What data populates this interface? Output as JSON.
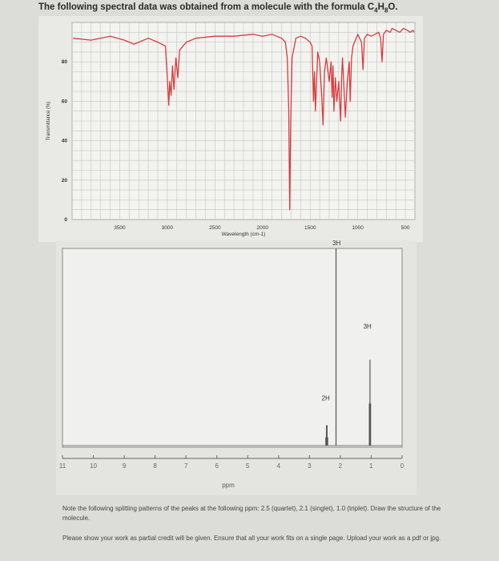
{
  "header": {
    "title_prefix": "The following spectral data was obtained from a molecule with the formula C",
    "c_sub": "4",
    "h": "H",
    "h_sub": "8",
    "o": "O."
  },
  "chart_data": [
    {
      "type": "line",
      "name": "IR spectrum",
      "xlabel": "Wavelength (cm-1)",
      "ylabel": "Transmittance (%)",
      "x_reversed": true,
      "xlim": [
        4000,
        400
      ],
      "ylim": [
        0,
        100
      ],
      "x_ticks": [
        3500,
        3000,
        2500,
        2000,
        1500,
        1000,
        500
      ],
      "y_ticks": [
        0,
        20,
        40,
        60,
        80
      ],
      "grid": true,
      "color": "#d93b3b",
      "series": [
        {
          "x": [
            3990,
            3800,
            3600,
            3450,
            3350,
            3200,
            3100,
            3020,
            3000,
            2985,
            2975,
            2960,
            2945,
            2930,
            2910,
            2890,
            2870,
            2800,
            2700,
            2500,
            2300,
            2100,
            2000,
            1900,
            1800,
            1760,
            1740,
            1725,
            1715,
            1705,
            1690,
            1650,
            1600,
            1550,
            1500,
            1480,
            1465,
            1455,
            1445,
            1420,
            1400,
            1380,
            1365,
            1350,
            1330,
            1300,
            1280,
            1270,
            1260,
            1250,
            1235,
            1220,
            1200,
            1180,
            1170,
            1160,
            1150,
            1130,
            1110,
            1090,
            1080,
            1065,
            1050,
            1000,
            960,
            945,
            930,
            900,
            860,
            820,
            780,
            760,
            745,
            730,
            700,
            660,
            640,
            600,
            560,
            520,
            480,
            450,
            420,
            410
          ],
          "y": [
            92,
            91,
            93,
            91,
            89,
            92,
            90,
            88,
            72,
            58,
            70,
            63,
            78,
            66,
            82,
            72,
            86,
            90,
            92,
            93,
            93,
            94,
            93,
            94,
            92,
            90,
            82,
            55,
            5,
            45,
            82,
            92,
            93,
            92,
            90,
            88,
            60,
            75,
            55,
            85,
            80,
            64,
            48,
            75,
            82,
            70,
            80,
            62,
            78,
            55,
            72,
            60,
            70,
            50,
            72,
            82,
            72,
            52,
            70,
            80,
            60,
            82,
            88,
            94,
            90,
            76,
            92,
            94,
            93,
            94,
            95,
            92,
            80,
            94,
            96,
            95,
            97,
            96,
            95,
            97,
            96,
            95,
            96,
            95
          ]
        }
      ]
    },
    {
      "type": "line",
      "name": "1H NMR spectrum",
      "xlabel": "ppm",
      "x_reversed": true,
      "xlim": [
        11,
        0
      ],
      "x_ticks": [
        11,
        10,
        9,
        8,
        7,
        6,
        5,
        4,
        3,
        2,
        1,
        0
      ],
      "grid": false,
      "color": "#555555",
      "peaks": [
        {
          "ppm": 2.47,
          "height": 0.05
        },
        {
          "ppm": 2.45,
          "height": 0.11
        },
        {
          "ppm": 2.43,
          "height": 0.11
        },
        {
          "ppm": 2.41,
          "height": 0.05
        },
        {
          "ppm": 2.14,
          "height": 1.0
        },
        {
          "ppm": 1.06,
          "height": 0.22
        },
        {
          "ppm": 1.04,
          "height": 0.44
        },
        {
          "ppm": 1.02,
          "height": 0.22
        }
      ],
      "integration_labels": [
        {
          "text": "3H",
          "ppm": 2.1,
          "level": 1.0
        },
        {
          "text": "3H",
          "ppm": 1.1,
          "level": 0.58
        },
        {
          "text": "2H",
          "ppm": 2.45,
          "level": 0.22
        }
      ]
    }
  ],
  "notes": {
    "line1": "Note the following splitting patterns of the peaks at the following ppm: 2.5 (quartet), 2.1 (singlet), 1.0 (triplet). Draw the structure of the molecule.",
    "line2": "Please show your work as partial credit will be given. Ensure that all your work fits on a single page. Upload your work as a pdf or jpg."
  }
}
